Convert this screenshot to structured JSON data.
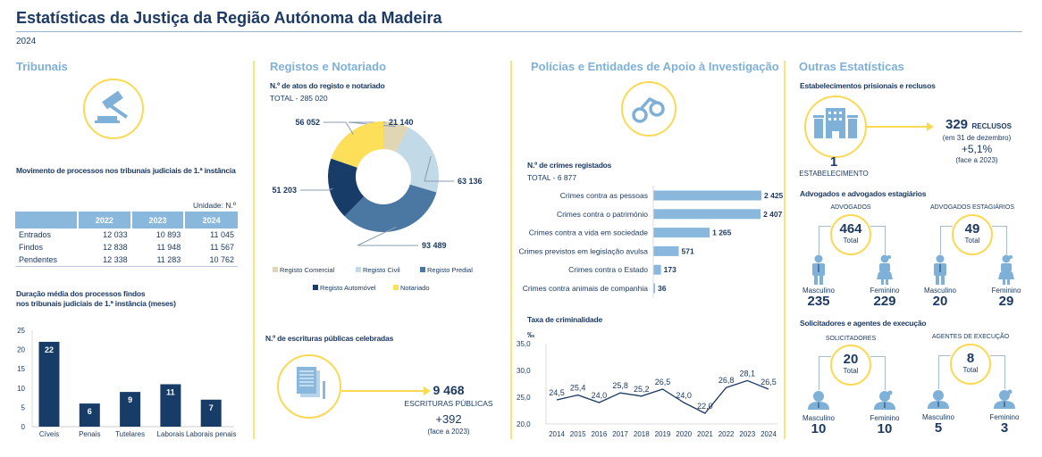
{
  "header": {
    "title": "Estatísticas da Justiça da Região Autónoma da Madeira",
    "year": "2024"
  },
  "sections": {
    "tribunais": "Tribunais",
    "registos": "Registos e Notariado",
    "policias": "Polícias e Entidades de Apoio à Investigação",
    "outras": "Outras Estatísticas"
  },
  "icons": {
    "tribunais": "gavel-icon",
    "policias": "handcuffs-icon",
    "escrituras": "document-icon",
    "prisoes": "prison-building-icon",
    "pessoas": "person-icon"
  },
  "colors": {
    "navy": "#1c3a63",
    "light_blue": "#8ab8dc",
    "yellow": "#fbd954"
  },
  "tribunais": {
    "movimento_title": "Movimento de processos nos tribunais judiciais de 1.ª instância",
    "unit": "Unidade: N.º",
    "table": {
      "headers": [
        "",
        "2022",
        "2023",
        "2024"
      ],
      "rows": [
        [
          "Entrados",
          "12 033",
          "10 893",
          "11 045"
        ],
        [
          "Findos",
          "12 838",
          "11 948",
          "11 567"
        ],
        [
          "Pendentes",
          "12 338",
          "11 283",
          "10 762"
        ]
      ]
    },
    "duracao_title_1": "Duração média dos processos findos",
    "duracao_title_2": "nos tribunais judiciais de 1.ª instância (meses)"
  },
  "registos": {
    "atos_title": "N.º de atos do registo e notariado",
    "total": "TOTAL - 285 020",
    "escrituras_title": "N.º de escrituras públicas celebradas",
    "escrituras_value": "9 468",
    "escrituras_label": "ESCRITURAS PÚBLICAS",
    "escrituras_change": "+392",
    "escrituras_note": "(face a 2023)"
  },
  "policias": {
    "crimes_title": "N.º de crimes registados",
    "crimes_total": "TOTAL - 6 877",
    "taxa_title": "Taxa de criminalidade"
  },
  "outras": {
    "prisoes_title": "Estabelecimentos prisionais e reclusos",
    "reclusos": "329",
    "reclusos_label": "RECLUSOS",
    "reclusos_note": "(em 31 de dezembro)",
    "reclusos_change": "+5,1%",
    "reclusos_change_note": "(face a 2023)",
    "estabelecimentos": "1",
    "estabelecimentos_label": "ESTABELECIMENTO",
    "advogados_title": "Advogados e advogados estagiários",
    "solicitadores_title": "Solicitadores e agentes de execução",
    "groups": [
      {
        "label": "ADVOGADOS",
        "total": "464",
        "total_label": "Total",
        "male_label": "Masculino",
        "male": "235",
        "female_label": "Feminino",
        "female": "229"
      },
      {
        "label": "ADVOGADOS ESTAGIÁRIOS",
        "total": "49",
        "total_label": "Total",
        "male_label": "Masculino",
        "male": "20",
        "female_label": "Feminino",
        "female": "29"
      },
      {
        "label": "SOLICITADORES",
        "total": "20",
        "total_label": "Total",
        "male_label": "Masculino",
        "male": "10",
        "female_label": "Feminino",
        "female": "10"
      },
      {
        "label": "AGENTES DE EXECUÇÃO",
        "total": "8",
        "total_label": "Total",
        "male_label": "Masculino",
        "male": "5",
        "female_label": "Feminino",
        "female": "3"
      }
    ]
  },
  "chart_data": [
    {
      "type": "bar",
      "categories": [
        "Cíveis",
        "Penais",
        "Tutelares",
        "Laborais",
        "Laborais penais"
      ],
      "values": [
        22,
        6,
        9,
        11,
        7
      ],
      "ylim": [
        0,
        25
      ],
      "yticks": [
        "0",
        "5",
        "10",
        "15",
        "20",
        "25"
      ],
      "color": "#173c68"
    },
    {
      "type": "pie",
      "donut": true,
      "labels": [
        "Registo Comercial",
        "Registo Civil",
        "Registo Predial",
        "Registo Automóvel",
        "Notariado"
      ],
      "values": [
        21140,
        63136,
        93489,
        51203,
        56052
      ],
      "value_labels": [
        "21 140",
        "63 136",
        "93 489",
        "51 203",
        "56 052"
      ],
      "colors": [
        "#e0d6b4",
        "#c2d9e7",
        "#4a78a3",
        "#173c68",
        "#fddf5a"
      ],
      "legend": "bottom"
    },
    {
      "type": "bar",
      "orientation": "horizontal",
      "categories": [
        "Crimes contra as pessoas",
        "Crimes contra o património",
        "Crimes contra a vida em sociedade",
        "Crimes previstos em legislação avulsa",
        "Crimes contra o Estado",
        "Crimes contra animais de companhia"
      ],
      "values": [
        2425,
        2407,
        1265,
        571,
        173,
        36
      ],
      "value_labels": [
        "2 425",
        "2 407",
        "1 265",
        "571",
        "173",
        "36"
      ],
      "color": "#8ab8dc"
    },
    {
      "type": "line",
      "ylabel": "‰",
      "x": [
        "2014",
        "2015",
        "2016",
        "2017",
        "2018",
        "2019",
        "2020",
        "2021",
        "2022",
        "2023",
        "2024"
      ],
      "values": [
        24.5,
        25.4,
        24.0,
        25.8,
        25.2,
        26.5,
        24.0,
        22.0,
        26.8,
        28.1,
        26.5
      ],
      "value_labels": [
        "24,5",
        "25,4",
        "24,0",
        "25,8",
        "25,2",
        "26,5",
        "24,0",
        "22,0",
        "26,8",
        "28,1",
        "26,5"
      ],
      "ylim": [
        20,
        35
      ],
      "yticks": [
        "20,0",
        "25,0",
        "30,0",
        "35,0"
      ],
      "color": "#1c3a63"
    }
  ]
}
